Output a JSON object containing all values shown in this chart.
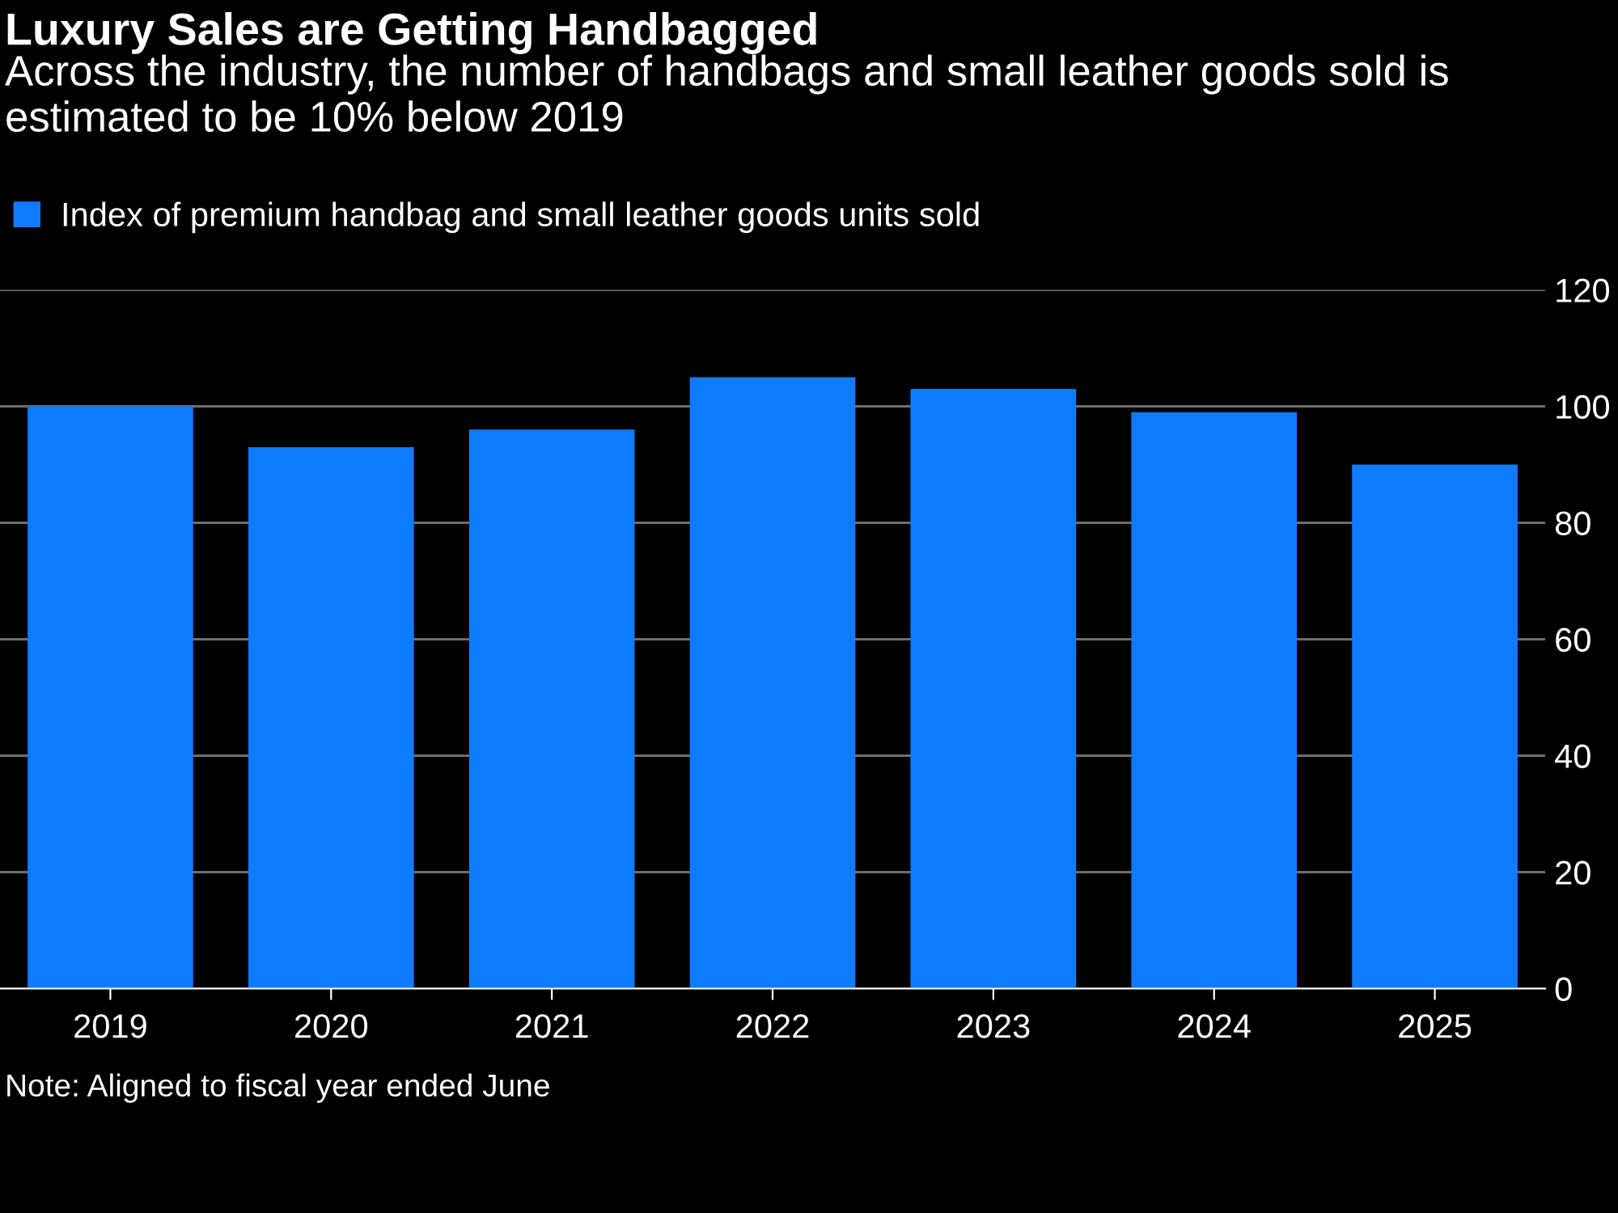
{
  "chart_data": {
    "type": "bar",
    "title": "Luxury Sales are Getting Handbagged",
    "subtitle": "Across the industry, the number of handbags and small leather goods sold is estimated to be 10% below 2019",
    "categories": [
      "2019",
      "2020",
      "2021",
      "2022",
      "2023",
      "2024",
      "2025"
    ],
    "series": [
      {
        "name": "Index of premium handbag and small leather goods units sold",
        "color": "#0f7cff",
        "values": [
          100,
          93,
          96,
          105,
          103,
          99,
          90
        ]
      }
    ],
    "ylim": [
      0,
      120
    ],
    "yticks": [
      0,
      20,
      40,
      60,
      80,
      100,
      120
    ],
    "grid": "y",
    "legend": "top left",
    "annotations": [
      "Note: Aligned to fiscal year ended June"
    ]
  }
}
